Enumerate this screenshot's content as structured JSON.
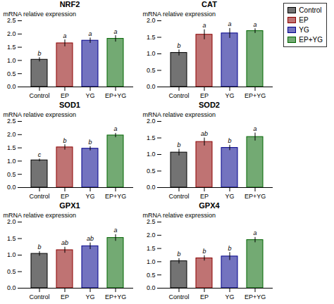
{
  "chart_data": [
    {
      "type": "bar",
      "title": "NRF2",
      "categories": [
        "Control",
        "EP",
        "YG",
        "EP+YG"
      ],
      "values": [
        1.03,
        1.65,
        1.75,
        1.82
      ],
      "errors": [
        0.08,
        0.13,
        0.1,
        0.12
      ],
      "annotations": [
        "b",
        "a",
        "a",
        "a"
      ],
      "colors": [
        "#000000",
        "#8B0000",
        "#00008B",
        "#006400"
      ],
      "ylabel": "mRNA relative expression",
      "ylim": [
        0,
        2.5
      ],
      "yticks": [
        {
          "value": 0,
          "label": "0.0"
        },
        0.5,
        {
          "value": 1.0,
          "label": "1.0"
        },
        1.5,
        {
          "value": 2.0,
          "label": "2.0"
        },
        2.5
      ],
      "legend": "upper right"
    },
    {
      "type": "bar",
      "title": "CAT",
      "categories": [
        "Control",
        "EP",
        "YG",
        "EP+YG"
      ],
      "values": [
        1.03,
        1.58,
        1.62,
        1.69
      ],
      "errors": [
        0.09,
        0.15,
        0.15,
        0.07
      ],
      "annotations": [
        "b",
        "a",
        "a",
        "a"
      ],
      "colors": [
        "#000000",
        "#8B0000",
        "#00008B",
        "#006400"
      ],
      "ylabel": "mRNA relative expression",
      "ylim": [
        0,
        2.0
      ],
      "yticks": [
        {
          "value": 0,
          "label": "0.0"
        },
        0.5,
        {
          "value": 1.0,
          "label": "1.0"
        },
        1.5,
        {
          "value": 2.0,
          "label": "2.0"
        }
      ]
    },
    {
      "type": "bar",
      "title": "SOD1",
      "categories": [
        "Control",
        "EP",
        "YG",
        "EP+YG"
      ],
      "values": [
        1.03,
        1.52,
        1.47,
        1.97
      ],
      "errors": [
        0.05,
        0.1,
        0.08,
        0.08
      ],
      "annotations": [
        "c",
        "b",
        "b",
        "a"
      ],
      "colors": [
        "#000000",
        "#8B0000",
        "#00008B",
        "#006400"
      ],
      "ylabel": "mRNA relative expression",
      "ylim": [
        0,
        2.5
      ],
      "yticks": [
        {
          "value": 0,
          "label": "0.0"
        },
        0.5,
        {
          "value": 1.0,
          "label": "1.0"
        },
        1.5,
        {
          "value": 2.0,
          "label": "2.0"
        },
        2.5
      ]
    },
    {
      "type": "bar",
      "title": "SOD2",
      "categories": [
        "Control",
        "EP",
        "YG",
        "EP+YG"
      ],
      "values": [
        1.06,
        1.38,
        1.2,
        1.53
      ],
      "errors": [
        0.1,
        0.12,
        0.08,
        0.12
      ],
      "annotations": [
        "b",
        "ab",
        "b",
        "a"
      ],
      "colors": [
        "#000000",
        "#8B0000",
        "#00008B",
        "#006400"
      ],
      "ylabel": "mRNA relative expression",
      "ylim": [
        0,
        2.0
      ],
      "yticks": [
        {
          "value": 0,
          "label": "0.0"
        },
        0.5,
        {
          "value": 1.0,
          "label": "1.0"
        },
        1.5,
        {
          "value": 2.0,
          "label": "2.0"
        }
      ]
    },
    {
      "type": "bar",
      "title": "GPX1",
      "categories": [
        "Control",
        "EP",
        "YG",
        "EP+YG"
      ],
      "values": [
        1.04,
        1.15,
        1.27,
        1.52
      ],
      "errors": [
        0.07,
        0.09,
        0.1,
        0.1
      ],
      "annotations": [
        "b",
        "ab",
        "ab",
        "a"
      ],
      "colors": [
        "#000000",
        "#8B0000",
        "#00008B",
        "#006400"
      ],
      "ylabel": "mRNA relative expression",
      "ylim": [
        0,
        2.0
      ],
      "yticks": [
        {
          "value": 0,
          "label": "0.0"
        },
        0.5,
        {
          "value": 1.0,
          "label": "1.0"
        },
        1.5,
        {
          "value": 2.0,
          "label": "2.0"
        }
      ]
    },
    {
      "type": "bar",
      "title": "GPX4",
      "categories": [
        "Control",
        "EP",
        "YG",
        "EP+YG"
      ],
      "values": [
        1.02,
        1.13,
        1.2,
        1.82
      ],
      "errors": [
        0.1,
        0.1,
        0.15,
        0.1
      ],
      "annotations": [
        "b",
        "b",
        "b",
        "a"
      ],
      "colors": [
        "#000000",
        "#8B0000",
        "#00008B",
        "#006400"
      ],
      "ylabel": "mRNA relative expression",
      "ylim": [
        0,
        2.5
      ],
      "yticks": [
        {
          "value": 0,
          "label": "0.0"
        },
        0.5,
        {
          "value": 1.0,
          "label": "1.0"
        },
        1.5,
        {
          "value": 2.0,
          "label": "2.0"
        },
        2.5
      ]
    }
  ]
}
